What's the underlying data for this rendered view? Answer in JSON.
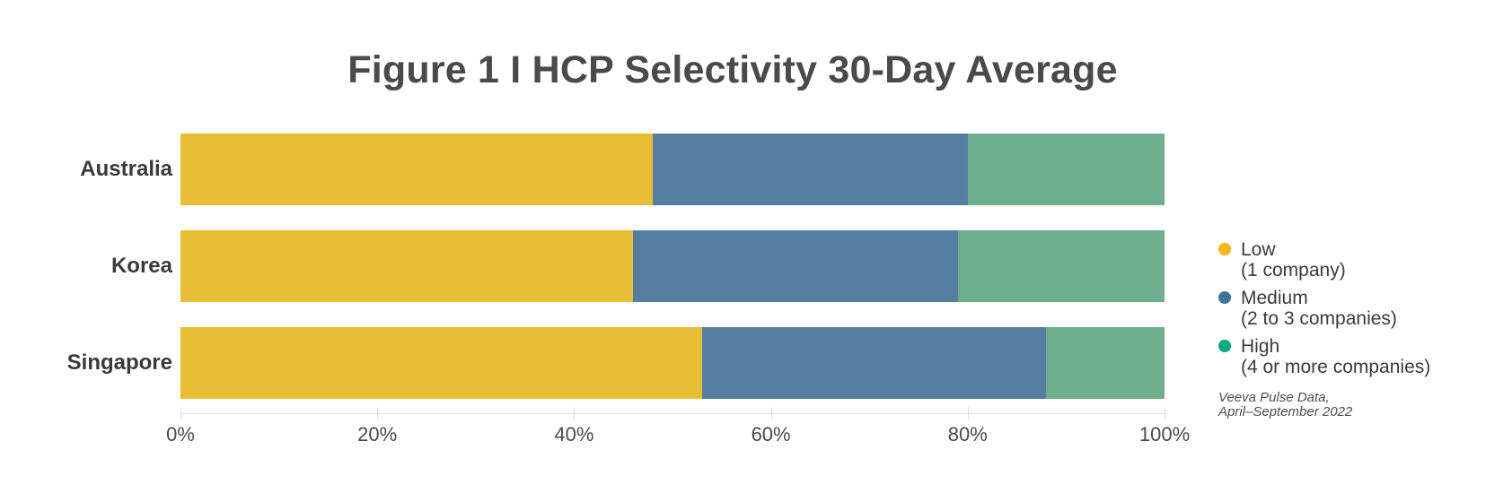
{
  "chart_data": {
    "type": "bar",
    "orientation": "horizontal",
    "stacked": true,
    "units": "percent",
    "title": "Figure 1 I HCP Selectivity 30-Day Average",
    "categories": [
      "Australia",
      "Korea",
      "Singapore"
    ],
    "series": [
      {
        "name": "Low",
        "detail": "(1 company)",
        "bar_color": "#E8BE35",
        "legend_dot_color": "#F9B514",
        "values": [
          48,
          46,
          53
        ]
      },
      {
        "name": "Medium",
        "detail": "(2 to 3 companies)",
        "bar_color": "#567EA3",
        "legend_dot_color": "#3F749B",
        "values": [
          32,
          33,
          35
        ]
      },
      {
        "name": "High",
        "detail": "(4 or more companies)",
        "bar_color": "#6FAE8C",
        "legend_dot_color": "#00AC80",
        "values": [
          20,
          21,
          12
        ]
      }
    ],
    "xlim": [
      0,
      100
    ],
    "x_tick_values": [
      0,
      20,
      40,
      60,
      80,
      100
    ],
    "x_tick_labels": [
      "0%",
      "20%",
      "40%",
      "60%",
      "80%",
      "100%"
    ],
    "grid": false,
    "legend_position": "right",
    "source_note_line1": "Veeva Pulse Data,",
    "source_note_line2": "April–September 2022"
  }
}
